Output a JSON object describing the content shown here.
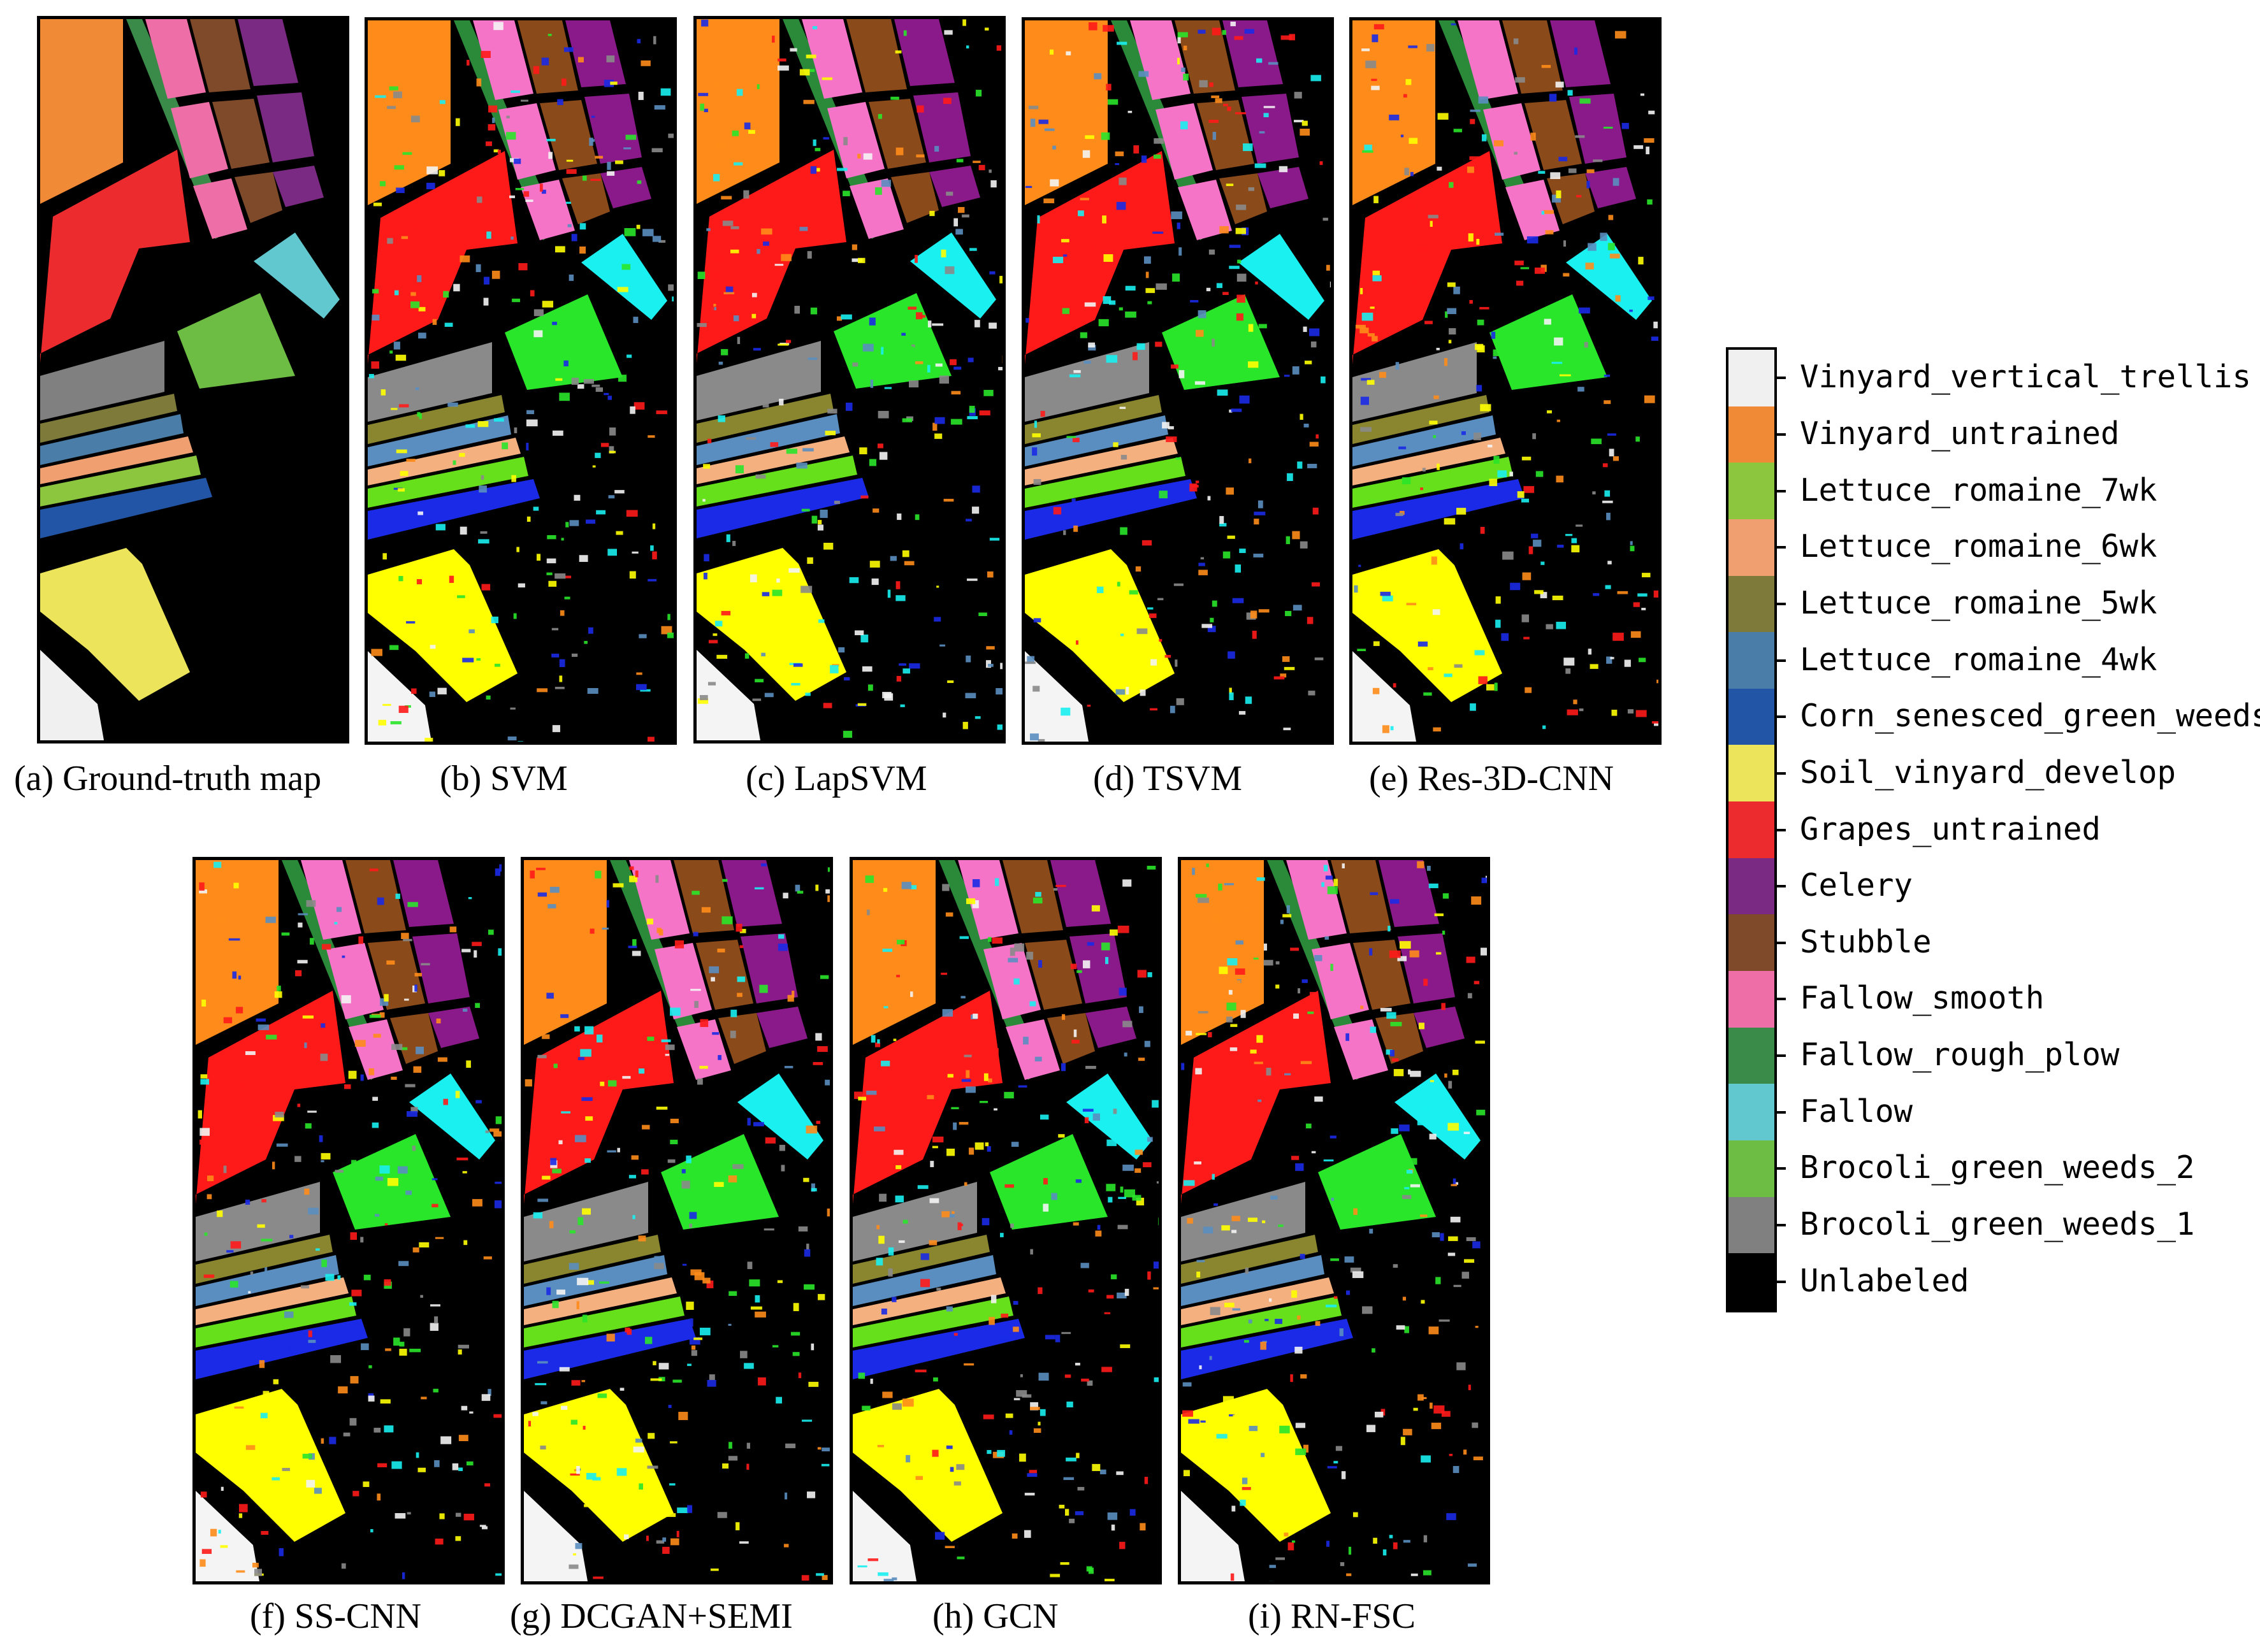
{
  "figure": {
    "panels": [
      {
        "id": "a",
        "caption": "(a) Ground-truth map",
        "variant": "gt"
      },
      {
        "id": "b",
        "caption": "(b)  SVM",
        "variant": "svm"
      },
      {
        "id": "c",
        "caption": "(c) LapSVM",
        "variant": "lapsvm"
      },
      {
        "id": "d",
        "caption": "(d) TSVM",
        "variant": "tsvm"
      },
      {
        "id": "e",
        "caption": "(e) Res-3D-CNN",
        "variant": "res3d"
      },
      {
        "id": "f",
        "caption": "(f) SS-CNN",
        "variant": "sscnn"
      },
      {
        "id": "g",
        "caption": "(g)  DCGAN+SEMI",
        "variant": "dcgan"
      },
      {
        "id": "h",
        "caption": "(h) GCN",
        "variant": "gcn"
      },
      {
        "id": "i",
        "caption": "(i) RN-FSC",
        "variant": "rnfsc"
      }
    ]
  },
  "legend": {
    "items": [
      {
        "label": "Vinyard_vertical_trellis",
        "color": "#f0f0f0"
      },
      {
        "label": "Vinyard_untrained",
        "color": "#f08a36"
      },
      {
        "label": "Lettuce_romaine_7wk",
        "color": "#8cc63f"
      },
      {
        "label": "Lettuce_romaine_6wk",
        "color": "#f0a070"
      },
      {
        "label": "Lettuce_romaine_5wk",
        "color": "#7d7a3a"
      },
      {
        "label": "Lettuce_romaine_4wk",
        "color": "#4a7ea8"
      },
      {
        "label": "Corn_senesced_green_weeds",
        "color": "#2255a5"
      },
      {
        "label": "Soil_vinyard_develop",
        "color": "#ece45a"
      },
      {
        "label": "Grapes_untrained",
        "color": "#ec2b2f"
      },
      {
        "label": "Celery",
        "color": "#7a2a82"
      },
      {
        "label": "Stubble",
        "color": "#7f4a2a"
      },
      {
        "label": "Fallow_smooth",
        "color": "#ee6fa8"
      },
      {
        "label": "Fallow_rough_plow",
        "color": "#3a8a4a"
      },
      {
        "label": "Fallow",
        "color": "#62c8d0"
      },
      {
        "label": "Brocoli_green_weeds_2",
        "color": "#6dbd45"
      },
      {
        "label": "Brocoli_green_weeds_1",
        "color": "#808080"
      },
      {
        "label": "Unlabeled",
        "color": "#000000"
      }
    ]
  }
}
